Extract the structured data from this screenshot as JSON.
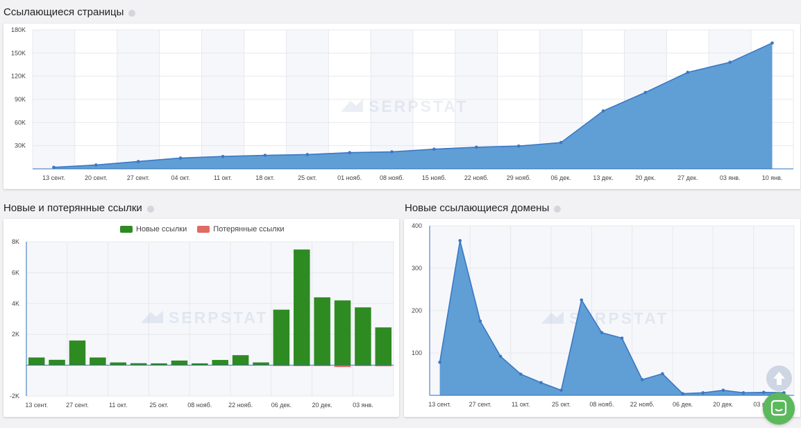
{
  "sections": {
    "referring_pages_title": "Ссылающиеся страницы",
    "links_title": "Новые и потерянные ссылки",
    "domains_title": "Новые ссылающиеся домены"
  },
  "watermark": "SERPSTAT",
  "colors": {
    "area_fill": "#5b9bd5",
    "line": "#3a78c3",
    "new_links": "#2e8b22",
    "lost_links": "#e06b63",
    "chat_button": "#5cb85c"
  },
  "icons": {
    "info": "info-icon",
    "scroll_up": "arrow-up-icon",
    "chat": "chat-icon"
  },
  "chart_data": [
    {
      "type": "area",
      "title": "Ссылающиеся страницы",
      "x": [
        "13 сент.",
        "20 сент.",
        "27 сент.",
        "04 окт.",
        "11 окт.",
        "18 окт.",
        "25 окт.",
        "01 нояб.",
        "08 нояб.",
        "15 нояб.",
        "22 нояб.",
        "29 нояб.",
        "06 дек.",
        "13 дек.",
        "20 дек.",
        "27 дек.",
        "03 янв.",
        "10 янв."
      ],
      "values": [
        2000,
        5000,
        9500,
        14000,
        16000,
        17500,
        18500,
        21000,
        22000,
        25500,
        28000,
        29500,
        34000,
        75000,
        99000,
        125000,
        138000,
        163000
      ],
      "y_ticks": [
        "30K",
        "60K",
        "90K",
        "120K",
        "150K",
        "180K"
      ],
      "ylim": [
        0,
        180000
      ],
      "grid": true
    },
    {
      "type": "bar",
      "title": "Новые и потерянные ссылки",
      "categories": [
        "13 сент.",
        "20 сент.",
        "27 сент.",
        "04 окт.",
        "11 окт.",
        "18 окт.",
        "25 окт.",
        "01 нояб.",
        "08 нояб.",
        "15 нояб.",
        "22 нояб.",
        "29 нояб.",
        "06 дек.",
        "13 дек.",
        "20 дек.",
        "27 дек.",
        "03 янв.",
        "10 янв."
      ],
      "x_tick_labels": [
        "13 сент.",
        "27 сент.",
        "11 окт.",
        "25 окт.",
        "08 нояб.",
        "22 нояб.",
        "06 дек.",
        "20 дек.",
        "03 янв."
      ],
      "series": [
        {
          "name": "Новые ссылки",
          "values": [
            500,
            350,
            1600,
            500,
            180,
            130,
            120,
            300,
            120,
            340,
            650,
            180,
            3600,
            7500,
            4400,
            4200,
            3750,
            2450
          ]
        },
        {
          "name": "Потерянные ссылки",
          "values": [
            0,
            0,
            0,
            0,
            0,
            0,
            0,
            0,
            0,
            0,
            0,
            0,
            -20,
            -60,
            -40,
            -120,
            -40,
            -70
          ]
        }
      ],
      "y_ticks": [
        "-2K",
        "2K",
        "4K",
        "6K",
        "8K"
      ],
      "ylim": [
        -2000,
        8000
      ],
      "legend": "top-center",
      "grid": true
    },
    {
      "type": "area",
      "title": "Новые ссылающиеся домены",
      "x": [
        "13 сент.",
        "20 сент.",
        "27 сент.",
        "04 окт.",
        "11 окт.",
        "18 окт.",
        "25 окт.",
        "01 нояб.",
        "08 нояб.",
        "15 нояб.",
        "22 нояб.",
        "29 нояб.",
        "06 дек.",
        "13 дек.",
        "20 дек.",
        "27 дек.",
        "03 янв.",
        "10 янв."
      ],
      "x_tick_labels": [
        "13 сент.",
        "27 сент.",
        "11 окт.",
        "25 окт.",
        "08 нояб.",
        "22 нояб.",
        "06 дек.",
        "20 дек.",
        "03 янв."
      ],
      "values": [
        78,
        365,
        175,
        92,
        50,
        30,
        12,
        225,
        148,
        135,
        37,
        51,
        4,
        6,
        12,
        6,
        7,
        6
      ],
      "y_ticks": [
        "100",
        "200",
        "300",
        "400"
      ],
      "ylim": [
        0,
        400
      ],
      "grid": true
    }
  ]
}
